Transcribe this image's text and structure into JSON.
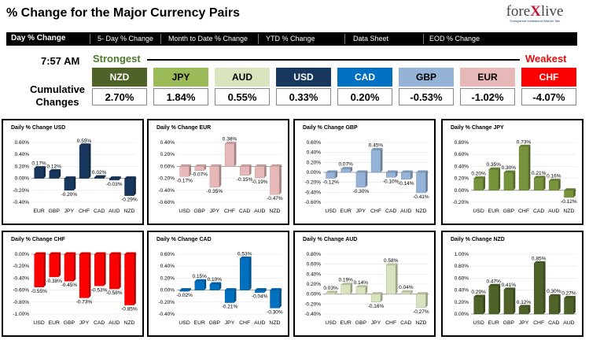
{
  "page": {
    "title": "% Change for the Major Currency Pairs",
    "time": "7:57 AM",
    "cumulative_label": "Cumulative Changes",
    "strongest_label": "Strongest",
    "weakest_label": "Weakest"
  },
  "logo": {
    "text_a": "fore",
    "text_x": "X",
    "text_b": "live",
    "tagline": "Transparent Institutional Market Talk"
  },
  "nav": {
    "items": [
      "Day % Change",
      "5- Day % Change",
      "Month to Date % Change",
      "YTD % Change",
      "Data Sheet",
      "EOD % Change"
    ]
  },
  "colors": {
    "NZD": "#4f6228",
    "JPY": "#9bbb59",
    "AUD": "#d7e4bd",
    "USD": "#17375e",
    "CAD": "#0070c0",
    "GBP": "#95b3d7",
    "EUR": "#e6b9b8",
    "CHF": "#ff0000"
  },
  "strength": [
    {
      "currency": "NZD",
      "value": "2.70%",
      "bg": "#4f6228",
      "fg": "#ffffff"
    },
    {
      "currency": "JPY",
      "value": "1.84%",
      "bg": "#9bbb59",
      "fg": "#000000"
    },
    {
      "currency": "AUD",
      "value": "0.55%",
      "bg": "#d7e4bd",
      "fg": "#000000"
    },
    {
      "currency": "USD",
      "value": "0.33%",
      "bg": "#17375e",
      "fg": "#ffffff"
    },
    {
      "currency": "CAD",
      "value": "0.20%",
      "bg": "#0070c0",
      "fg": "#ffffff"
    },
    {
      "currency": "GBP",
      "value": "-0.53%",
      "bg": "#95b3d7",
      "fg": "#000000"
    },
    {
      "currency": "EUR",
      "value": "-1.02%",
      "bg": "#e6b9b8",
      "fg": "#000000"
    },
    {
      "currency": "CHF",
      "value": "-4.07%",
      "bg": "#ff0000",
      "fg": "#ffffff"
    }
  ],
  "chart_data": [
    {
      "type": "bar",
      "title": "Daily % Change USD",
      "base": "USD",
      "color": "#17375e",
      "categories": [
        "EUR",
        "GBP",
        "JPY",
        "CHF",
        "CAD",
        "AUD",
        "NZD"
      ],
      "values": [
        0.17,
        0.12,
        -0.2,
        0.55,
        0.02,
        -0.03,
        -0.29
      ],
      "labels": [
        "0.17%",
        "0.12%",
        "-0.20%",
        "0.55%",
        "0.02%",
        "-0.03%",
        "-0.29%"
      ],
      "ylim": [
        -0.4,
        0.6
      ],
      "ticks": [
        0.6,
        0.4,
        0.2,
        0.0,
        -0.2,
        -0.4
      ],
      "tick_labels": [
        "0.60%",
        "0.40%",
        "0.20%",
        "0.00%",
        "-0.20%",
        "-0.40%"
      ]
    },
    {
      "type": "bar",
      "title": "Daily % Change EUR",
      "base": "EUR",
      "color": "#e6b9b8",
      "categories": [
        "USD",
        "GBP",
        "JPY",
        "CHF",
        "CAD",
        "AUD",
        "NZD"
      ],
      "values": [
        -0.17,
        -0.07,
        -0.35,
        0.38,
        -0.15,
        -0.19,
        -0.47
      ],
      "labels": [
        "-0.17%",
        "-0.07%",
        "-0.35%",
        "0.38%",
        "-0.15%",
        "-0.19%",
        "-0.47%"
      ],
      "ylim": [
        -0.6,
        0.4
      ],
      "ticks": [
        0.4,
        0.2,
        0.0,
        -0.2,
        -0.4,
        -0.6
      ],
      "tick_labels": [
        "0.40%",
        "0.20%",
        "0.00%",
        "-0.20%",
        "-0.40%",
        "-0.60%"
      ]
    },
    {
      "type": "bar",
      "title": "Daily % Change GBP",
      "base": "GBP",
      "color": "#95b3d7",
      "categories": [
        "USD",
        "EUR",
        "JPY",
        "CHF",
        "CAD",
        "AUD",
        "NZD"
      ],
      "values": [
        -0.12,
        0.07,
        -0.3,
        0.45,
        -0.1,
        -0.14,
        -0.41
      ],
      "labels": [
        "-0.12%",
        "0.07%",
        "-0.30%",
        "0.45%",
        "-0.10%",
        "-0.14%",
        "-0.41%"
      ],
      "ylim": [
        -0.6,
        0.6
      ],
      "ticks": [
        0.6,
        0.4,
        0.2,
        0.0,
        -0.2,
        -0.4,
        -0.6
      ],
      "tick_labels": [
        "0.60%",
        "0.40%",
        "0.20%",
        "0.00%",
        "-0.20%",
        "-0.40%",
        "-0.60%"
      ]
    },
    {
      "type": "bar",
      "title": "Daily % Change JPY",
      "base": "JPY",
      "color": "#77933c",
      "categories": [
        "USD",
        "EUR",
        "GBP",
        "CHF",
        "CAD",
        "AUD",
        "NZD"
      ],
      "values": [
        0.2,
        0.35,
        0.3,
        0.73,
        0.21,
        0.16,
        -0.12
      ],
      "labels": [
        "0.20%",
        "0.35%",
        "0.30%",
        "0.73%",
        "0.21%",
        "0.16%",
        "-0.12%"
      ],
      "ylim": [
        -0.2,
        0.8
      ],
      "ticks": [
        0.8,
        0.6,
        0.4,
        0.2,
        0.0,
        -0.2
      ],
      "tick_labels": [
        "0.80%",
        "0.60%",
        "0.40%",
        "0.20%",
        "0.00%",
        "-0.20%"
      ]
    },
    {
      "type": "bar",
      "title": "Daily % Change CHF",
      "base": "CHF",
      "color": "#ff0000",
      "categories": [
        "USD",
        "EUR",
        "GBP",
        "JPY",
        "CAD",
        "AUD",
        "NZD"
      ],
      "values": [
        -0.55,
        -0.38,
        -0.45,
        -0.73,
        -0.53,
        -0.58,
        -0.85
      ],
      "labels": [
        "-0.55%",
        "-0.38%",
        "-0.45%",
        "-0.73%",
        "-0.53%",
        "-0.58%",
        "-0.85%"
      ],
      "ylim": [
        -1.0,
        0.0
      ],
      "ticks": [
        0.0,
        -0.2,
        -0.4,
        -0.6,
        -0.8,
        -1.0
      ],
      "tick_labels": [
        "0.00%",
        "-0.20%",
        "-0.40%",
        "-0.60%",
        "-0.80%",
        "-1.00%"
      ]
    },
    {
      "type": "bar",
      "title": "Daily % Change CAD",
      "base": "CAD",
      "color": "#0070c0",
      "categories": [
        "USD",
        "EUR",
        "GBP",
        "JPY",
        "CHF",
        "AUD",
        "NZD"
      ],
      "values": [
        -0.02,
        0.15,
        0.1,
        -0.21,
        0.53,
        -0.04,
        -0.3
      ],
      "labels": [
        "-0.02%",
        "0.15%",
        "0.10%",
        "-0.21%",
        "0.53%",
        "-0.04%",
        "-0.30%"
      ],
      "ylim": [
        -0.4,
        0.6
      ],
      "ticks": [
        0.6,
        0.4,
        0.2,
        0.0,
        -0.2,
        -0.4
      ],
      "tick_labels": [
        "0.60%",
        "0.40%",
        "0.20%",
        "0.00%",
        "-0.20%",
        "-0.40%"
      ]
    },
    {
      "type": "bar",
      "title": "Daily % Change AUD",
      "base": "AUD",
      "color": "#d7e4bd",
      "categories": [
        "USD",
        "EUR",
        "GBP",
        "JPY",
        "CHF",
        "CAD",
        "NZD"
      ],
      "values": [
        0.03,
        0.19,
        0.14,
        -0.16,
        0.58,
        0.04,
        -0.27
      ],
      "labels": [
        "0.03%",
        "0.19%",
        "0.14%",
        "-0.16%",
        "0.58%",
        "0.04%",
        "-0.27%"
      ],
      "ylim": [
        -0.4,
        0.8
      ],
      "ticks": [
        0.8,
        0.6,
        0.4,
        0.2,
        0.0,
        -0.2,
        -0.4
      ],
      "tick_labels": [
        "0.80%",
        "0.60%",
        "0.40%",
        "0.20%",
        "0.00%",
        "-0.20%",
        "-0.40%"
      ]
    },
    {
      "type": "bar",
      "title": "Daily % Change NZD",
      "base": "NZD",
      "color": "#4f6228",
      "categories": [
        "USD",
        "EUR",
        "GBP",
        "JPY",
        "CHF",
        "CAD",
        "AUD"
      ],
      "values": [
        0.29,
        0.47,
        0.41,
        0.12,
        0.85,
        0.3,
        0.27
      ],
      "labels": [
        "0.29%",
        "0.47%",
        "0.41%",
        "0.12%",
        "0.85%",
        "0.30%",
        "0.27%"
      ],
      "ylim": [
        0.0,
        1.0
      ],
      "ticks": [
        1.0,
        0.8,
        0.6,
        0.4,
        0.2,
        0.0
      ],
      "tick_labels": [
        "1.00%",
        "0.80%",
        "0.60%",
        "0.40%",
        "0.20%",
        "0.00%"
      ]
    }
  ]
}
